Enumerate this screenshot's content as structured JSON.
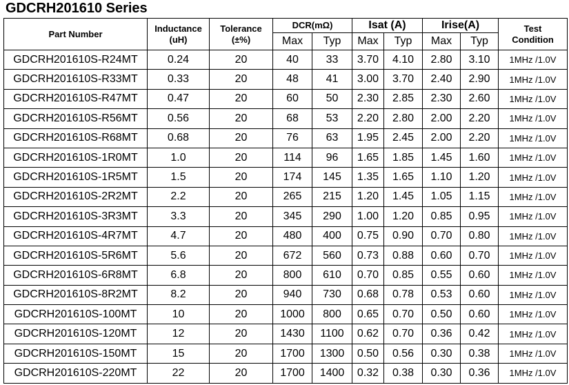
{
  "title": "GDCRH201610 Series",
  "table": {
    "headers": {
      "part_number": "Part Number",
      "inductance": [
        "Inductance",
        "(uH)"
      ],
      "tolerance": [
        "Tolerance",
        "(±%)"
      ],
      "dcr": "DCR(mΩ)",
      "isat": "Isat (A)",
      "irise": "Irise(A)",
      "test": [
        "Test",
        "Condition"
      ],
      "max": "Max",
      "typ": "Typ"
    },
    "rows": [
      [
        "GDCRH201610S-R24MT",
        "0.24",
        "20",
        "40",
        "33",
        "3.70",
        "4.10",
        "2.80",
        "3.10",
        "1MHz /1.0V"
      ],
      [
        "GDCRH201610S-R33MT",
        "0.33",
        "20",
        "48",
        "41",
        "3.00",
        "3.70",
        "2.40",
        "2.90",
        "1MHz /1.0V"
      ],
      [
        "GDCRH201610S-R47MT",
        "0.47",
        "20",
        "60",
        "50",
        "2.30",
        "2.85",
        "2.30",
        "2.60",
        "1MHz /1.0V"
      ],
      [
        "GDCRH201610S-R56MT",
        "0.56",
        "20",
        "68",
        "53",
        "2.20",
        "2.80",
        "2.00",
        "2.20",
        "1MHz /1.0V"
      ],
      [
        "GDCRH201610S-R68MT",
        "0.68",
        "20",
        "76",
        "63",
        "1.95",
        "2.45",
        "2.00",
        "2.20",
        "1MHz /1.0V"
      ],
      [
        "GDCRH201610S-1R0MT",
        "1.0",
        "20",
        "114",
        "96",
        "1.65",
        "1.85",
        "1.45",
        "1.60",
        "1MHz /1.0V"
      ],
      [
        "GDCRH201610S-1R5MT",
        "1.5",
        "20",
        "174",
        "145",
        "1.35",
        "1.65",
        "1.10",
        "1.20",
        "1MHz /1.0V"
      ],
      [
        "GDCRH201610S-2R2MT",
        "2.2",
        "20",
        "265",
        "215",
        "1.20",
        "1.45",
        "1.05",
        "1.15",
        "1MHz /1.0V"
      ],
      [
        "GDCRH201610S-3R3MT",
        "3.3",
        "20",
        "345",
        "290",
        "1.00",
        "1.20",
        "0.85",
        "0.95",
        "1MHz /1.0V"
      ],
      [
        "GDCRH201610S-4R7MT",
        "4.7",
        "20",
        "480",
        "400",
        "0.75",
        "0.90",
        "0.70",
        "0.80",
        "1MHz /1.0V"
      ],
      [
        "GDCRH201610S-5R6MT",
        "5.6",
        "20",
        "672",
        "560",
        "0.73",
        "0.88",
        "0.60",
        "0.70",
        "1MHz /1.0V"
      ],
      [
        "GDCRH201610S-6R8MT",
        "6.8",
        "20",
        "800",
        "610",
        "0.70",
        "0.85",
        "0.55",
        "0.60",
        "1MHz /1.0V"
      ],
      [
        "GDCRH201610S-8R2MT",
        "8.2",
        "20",
        "940",
        "730",
        "0.68",
        "0.78",
        "0.53",
        "0.60",
        "1MHz /1.0V"
      ],
      [
        "GDCRH201610S-100MT",
        "10",
        "20",
        "1000",
        "800",
        "0.65",
        "0.70",
        "0.50",
        "0.60",
        "1MHz /1.0V"
      ],
      [
        "GDCRH201610S-120MT",
        "12",
        "20",
        "1430",
        "1100",
        "0.62",
        "0.70",
        "0.36",
        "0.42",
        "1MHz /1.0V"
      ],
      [
        "GDCRH201610S-150MT",
        "15",
        "20",
        "1700",
        "1300",
        "0.50",
        "0.56",
        "0.30",
        "0.38",
        "1MHz /1.0V"
      ],
      [
        "GDCRH201610S-220MT",
        "22",
        "20",
        "1700",
        "1400",
        "0.32",
        "0.38",
        "0.30",
        "0.36",
        "1MHz /1.0V"
      ]
    ]
  }
}
